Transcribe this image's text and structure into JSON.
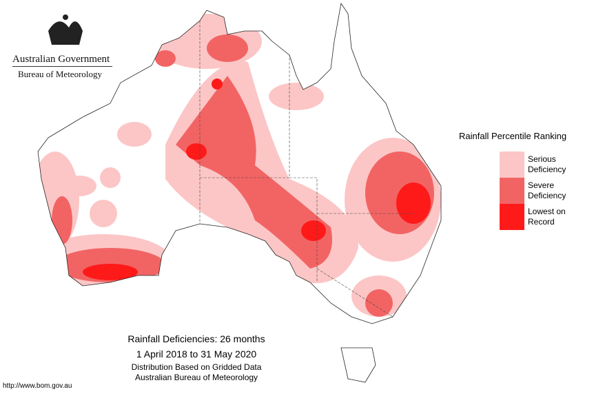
{
  "header": {
    "title": "Australian Government",
    "subtitle": "Bureau of Meteorology"
  },
  "legend": {
    "title": "Rainfall Percentile Ranking",
    "items": [
      {
        "label": "Serious Deficiency",
        "color": "#fcc6c6"
      },
      {
        "label": "Severe Deficiency",
        "color": "#f26464"
      },
      {
        "label": "Lowest on Record",
        "color": "#ff1a1a"
      }
    ]
  },
  "caption": {
    "title": "Rainfall Deficiencies: 26 months",
    "period": "1 April 2018 to 31 May 2020",
    "lines": [
      "Distribution Based on Gridded Data",
      "Australian Bureau of Meteorology"
    ]
  },
  "footer": {
    "url": "http://www.bom.gov.au"
  }
}
